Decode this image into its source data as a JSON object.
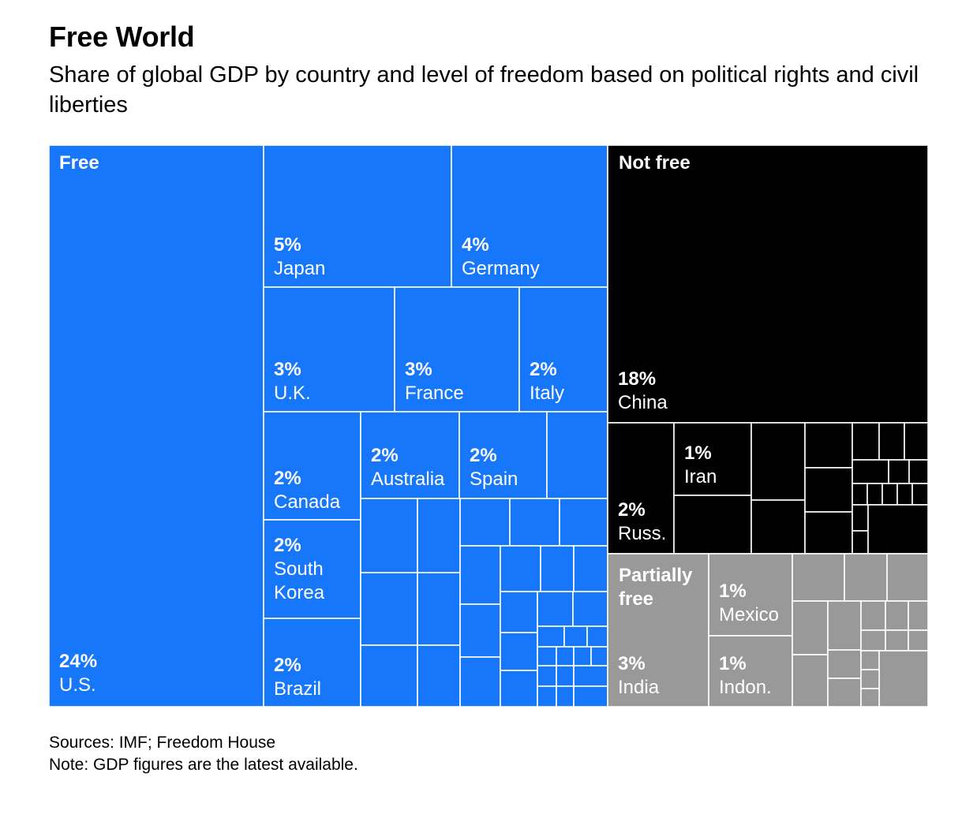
{
  "title": "Free World",
  "subtitle": "Share of global GDP by country and level of freedom based on political rights and civil liberties",
  "sources": "Sources: IMF; Freedom House",
  "note": "Note: GDP figures are the latest available.",
  "colors": {
    "free": "#1777FA",
    "not_free": "#000000",
    "partially_free": "#999999",
    "border": "#ffffff"
  },
  "chart_data": {
    "type": "treemap",
    "unit": "% of global GDP",
    "groups": [
      {
        "name": "Free",
        "color": "#1777FA",
        "items": [
          {
            "country": "U.S.",
            "share": 24,
            "label": "24%"
          },
          {
            "country": "Japan",
            "share": 5,
            "label": "5%"
          },
          {
            "country": "Germany",
            "share": 4,
            "label": "4%"
          },
          {
            "country": "U.K.",
            "share": 3,
            "label": "3%"
          },
          {
            "country": "France",
            "share": 3,
            "label": "3%"
          },
          {
            "country": "Italy",
            "share": 2,
            "label": "2%"
          },
          {
            "country": "Canada",
            "share": 2,
            "label": "2%"
          },
          {
            "country": "Australia",
            "share": 2,
            "label": "2%"
          },
          {
            "country": "Spain",
            "share": 2,
            "label": "2%"
          },
          {
            "country": "South Korea",
            "share": 2,
            "label": "2%"
          },
          {
            "country": "Brazil",
            "share": 2,
            "label": "2%"
          }
        ]
      },
      {
        "name": "Not free",
        "color": "#000000",
        "items": [
          {
            "country": "China",
            "share": 18,
            "label": "18%"
          },
          {
            "country": "Russ.",
            "share": 2,
            "label": "2%"
          },
          {
            "country": "Iran",
            "share": 1,
            "label": "1%"
          }
        ]
      },
      {
        "name": "Partially free",
        "color": "#999999",
        "items": [
          {
            "country": "India",
            "share": 3,
            "label": "3%"
          },
          {
            "country": "Mexico",
            "share": 1,
            "label": "1%"
          },
          {
            "country": "Indon.",
            "share": 1,
            "label": "1%"
          }
        ]
      }
    ]
  }
}
